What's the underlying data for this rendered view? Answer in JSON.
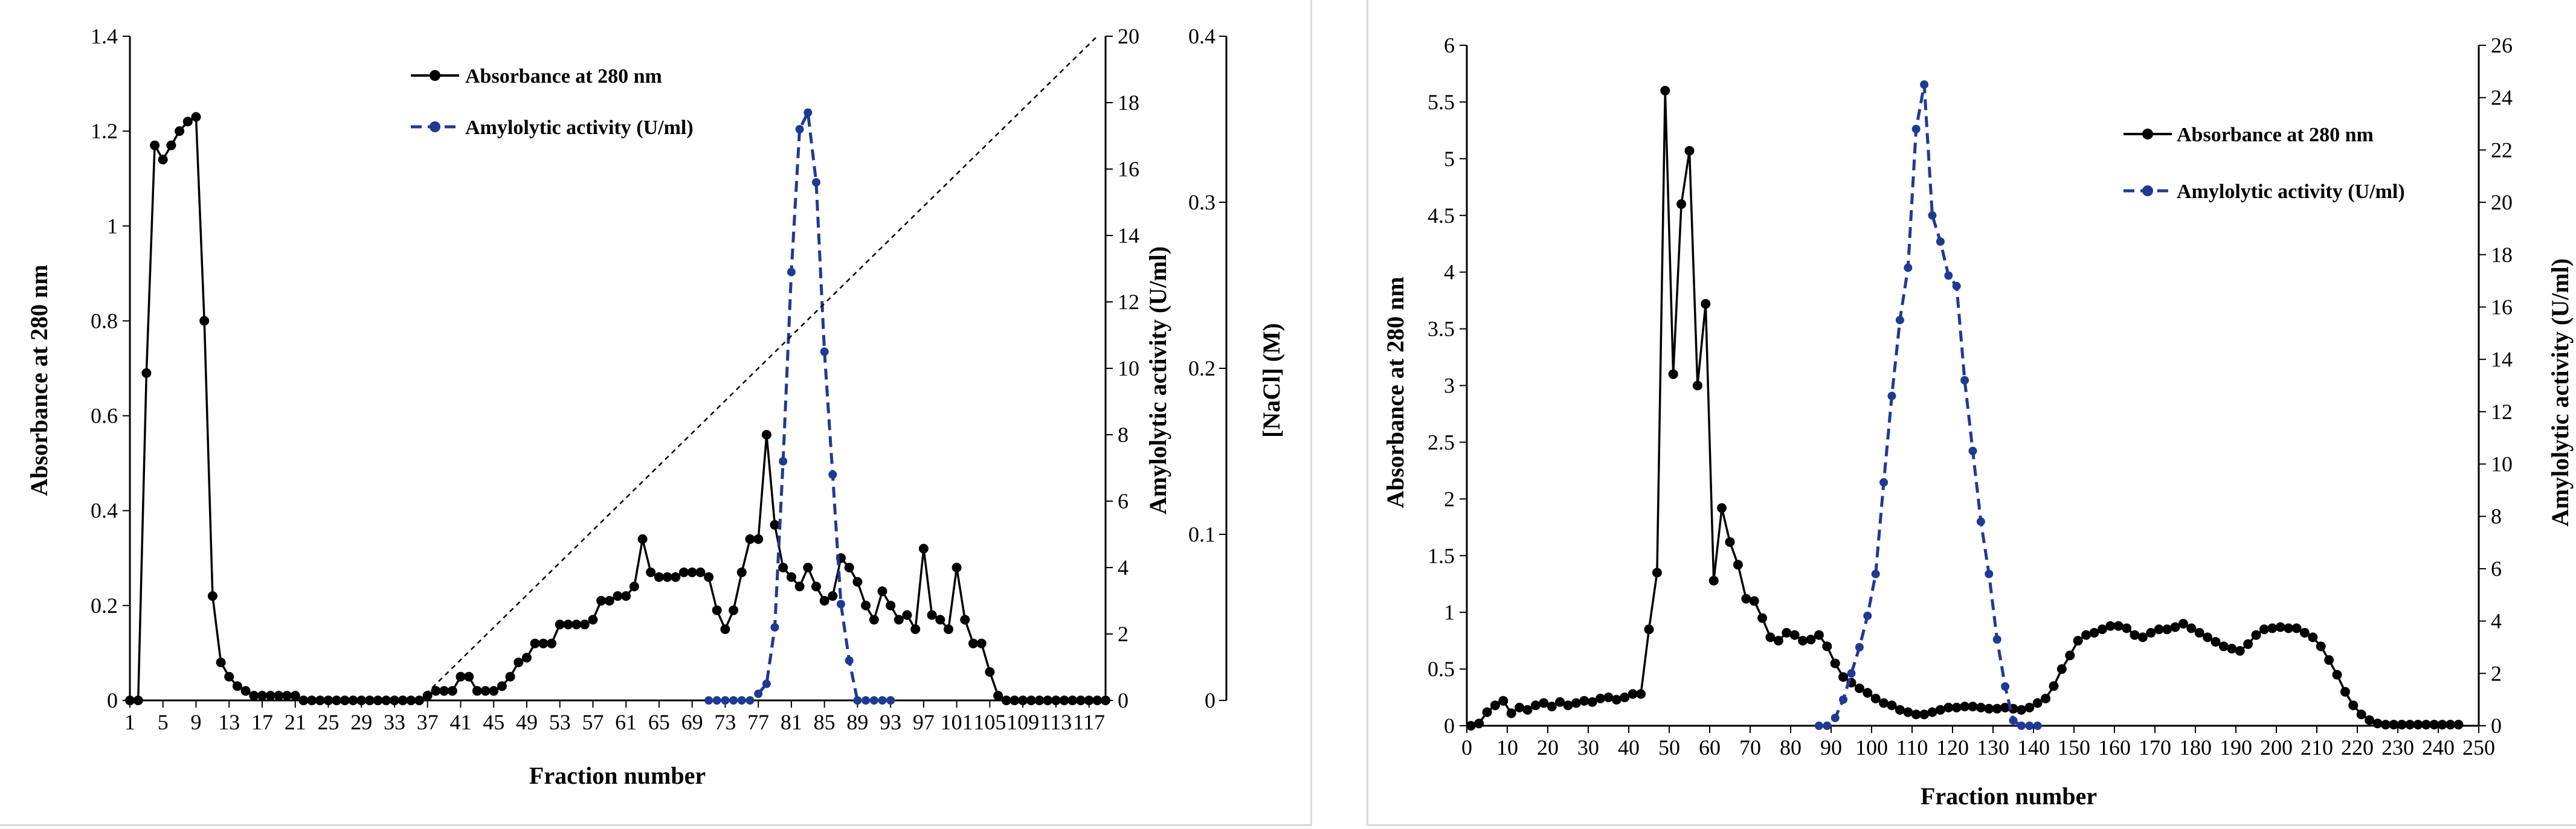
{
  "colors": {
    "absorbance": "#000000",
    "activity": "#1f3a93",
    "nacl": "#000000"
  },
  "chart_data": [
    {
      "type": "line",
      "xlabel": "Fraction number",
      "ylabel": "Absorbance at 280 nm",
      "y2label": "Amylolytic activity (U/ml)",
      "y3label": "[NaCl] (M)",
      "ylim": [
        0,
        1.4
      ],
      "y2lim": [
        0,
        20
      ],
      "y3lim": [
        0,
        0.4
      ],
      "xlim": [
        1,
        119
      ],
      "xtick_labels": [
        "1",
        "5",
        "9",
        "13",
        "17",
        "21",
        "25",
        "29",
        "33",
        "37",
        "41",
        "45",
        "49",
        "53",
        "57",
        "61",
        "65",
        "69",
        "73",
        "77",
        "81",
        "85",
        "89",
        "93",
        "97",
        "101",
        "105",
        "109",
        "113",
        "117"
      ],
      "ytick_labels": [
        "0",
        "0.2",
        "0.4",
        "0.6",
        "0.8",
        "1",
        "1.2",
        "1.4"
      ],
      "y2tick_labels": [
        "0",
        "2",
        "4",
        "6",
        "8",
        "10",
        "12",
        "14",
        "16",
        "18",
        "20"
      ],
      "y3tick_labels": [
        "0",
        "0.1",
        "0.2",
        "0.3",
        "0.4"
      ],
      "y3tick_values": [
        0,
        0.1,
        0.2,
        0.3,
        0.4
      ],
      "legend_position": "top-center",
      "series": [
        {
          "name": "Absorbance at 280 nm",
          "axis": "left",
          "style": "solid",
          "x": [
            1,
            2,
            3,
            4,
            5,
            6,
            7,
            8,
            9,
            10,
            11,
            12,
            13,
            14,
            15,
            16,
            17,
            18,
            19,
            20,
            21,
            22,
            23,
            24,
            25,
            26,
            27,
            28,
            29,
            30,
            31,
            32,
            33,
            34,
            35,
            36,
            37,
            38,
            39,
            40,
            41,
            42,
            43,
            44,
            45,
            46,
            47,
            48,
            49,
            50,
            51,
            52,
            53,
            54,
            55,
            56,
            57,
            58,
            59,
            60,
            61,
            62,
            63,
            64,
            65,
            66,
            67,
            68,
            69,
            70,
            71,
            72,
            73,
            74,
            75,
            76,
            77,
            78,
            79,
            80,
            81,
            82,
            83,
            84,
            85,
            86,
            87,
            88,
            89,
            90,
            91,
            92,
            93,
            94,
            95,
            96,
            97,
            98,
            99,
            100,
            101,
            102,
            103,
            104,
            105,
            106,
            107,
            108,
            109,
            110,
            111,
            112,
            113,
            114,
            115,
            116,
            117,
            118,
            119
          ],
          "y": [
            0,
            0,
            0.69,
            1.17,
            1.14,
            1.17,
            1.2,
            1.22,
            1.23,
            0.8,
            0.22,
            0.08,
            0.05,
            0.03,
            0.02,
            0.01,
            0.01,
            0.01,
            0.01,
            0.01,
            0.01,
            0,
            0,
            0,
            0,
            0,
            0,
            0,
            0,
            0,
            0,
            0,
            0,
            0,
            0,
            0,
            0.01,
            0.02,
            0.02,
            0.02,
            0.05,
            0.05,
            0.02,
            0.02,
            0.02,
            0.03,
            0.05,
            0.08,
            0.09,
            0.12,
            0.12,
            0.12,
            0.16,
            0.16,
            0.16,
            0.16,
            0.17,
            0.21,
            0.21,
            0.22,
            0.22,
            0.24,
            0.34,
            0.27,
            0.26,
            0.26,
            0.26,
            0.27,
            0.27,
            0.27,
            0.26,
            0.19,
            0.15,
            0.19,
            0.27,
            0.34,
            0.34,
            0.56,
            0.37,
            0.28,
            0.26,
            0.24,
            0.28,
            0.24,
            0.21,
            0.22,
            0.3,
            0.28,
            0.25,
            0.2,
            0.17,
            0.23,
            0.2,
            0.17,
            0.18,
            0.15,
            0.32,
            0.18,
            0.17,
            0.15,
            0.28,
            0.17,
            0.12,
            0.12,
            0.06,
            0.01,
            0,
            0,
            0,
            0,
            0,
            0,
            0,
            0,
            0,
            0,
            0,
            0,
            0
          ]
        },
        {
          "name": "Amylolytic activity (U/ml)",
          "axis": "right",
          "style": "dashed",
          "x": [
            71,
            72,
            73,
            74,
            75,
            76,
            77,
            78,
            79,
            80,
            81,
            82,
            83,
            84,
            85,
            86,
            87,
            88,
            89,
            90,
            91,
            92,
            93
          ],
          "y": [
            0,
            0,
            0,
            0,
            0,
            0,
            0.2,
            0.5,
            2.2,
            7.2,
            12.9,
            17.2,
            17.7,
            15.6,
            10.5,
            6.8,
            2.9,
            1.2,
            0,
            0,
            0,
            0,
            0
          ]
        },
        {
          "name": "NaCl gradient",
          "axis": "third",
          "style": "dotted",
          "x": [
            36,
            118
          ],
          "y": [
            0,
            0.4
          ]
        }
      ]
    },
    {
      "type": "line",
      "xlabel": "Fraction number",
      "ylabel": "Absorbance at 280 nm",
      "y2label": "Amylolytic activity (U/ml)",
      "ylim": [
        0,
        6
      ],
      "y2lim": [
        0,
        26
      ],
      "xlim": [
        0,
        250
      ],
      "xtick_labels": [
        "0",
        "10",
        "20",
        "30",
        "40",
        "50",
        "60",
        "70",
        "80",
        "90",
        "100",
        "110",
        "120",
        "130",
        "140",
        "150",
        "160",
        "170",
        "180",
        "190",
        "200",
        "210",
        "220",
        "230",
        "240",
        "250"
      ],
      "ytick_labels": [
        "0",
        "0.5",
        "1",
        "1.5",
        "2",
        "2.5",
        "3",
        "3.5",
        "4",
        "4.5",
        "5",
        "5.5",
        "6"
      ],
      "y2tick_labels": [
        "0",
        "2",
        "4",
        "6",
        "8",
        "10",
        "12",
        "14",
        "16",
        "18",
        "20",
        "22",
        "24",
        "26"
      ],
      "legend_position": "top-right",
      "series": [
        {
          "name": "Absorbance at 280 nm",
          "axis": "left",
          "style": "solid",
          "x": [
            1,
            3,
            5,
            7,
            9,
            11,
            13,
            15,
            17,
            19,
            21,
            23,
            25,
            27,
            29,
            31,
            33,
            35,
            37,
            39,
            41,
            43,
            45,
            47,
            49,
            51,
            53,
            55,
            57,
            59,
            61,
            63,
            65,
            67,
            69,
            71,
            73,
            75,
            77,
            79,
            81,
            83,
            85,
            87,
            89,
            91,
            93,
            95,
            97,
            99,
            101,
            103,
            105,
            107,
            109,
            111,
            113,
            115,
            117,
            119,
            121,
            123,
            125,
            127,
            129,
            131,
            133,
            135,
            137,
            139,
            141,
            143,
            145,
            147,
            149,
            151,
            153,
            155,
            157,
            159,
            161,
            163,
            165,
            167,
            169,
            171,
            173,
            175,
            177,
            179,
            181,
            183,
            185,
            187,
            189,
            191,
            193,
            195,
            197,
            199,
            201,
            203,
            205,
            207,
            209,
            211,
            213,
            215,
            217,
            219,
            221,
            223,
            225,
            227,
            229,
            231,
            233,
            235,
            237,
            239,
            241,
            243,
            245
          ],
          "y": [
            0,
            0.02,
            0.12,
            0.18,
            0.22,
            0.11,
            0.16,
            0.14,
            0.18,
            0.2,
            0.17,
            0.21,
            0.18,
            0.2,
            0.22,
            0.21,
            0.24,
            0.25,
            0.23,
            0.25,
            0.28,
            0.28,
            0.85,
            1.35,
            5.6,
            3.1,
            4.6,
            5.07,
            3.0,
            3.72,
            1.28,
            1.92,
            1.62,
            1.42,
            1.12,
            1.1,
            0.95,
            0.78,
            0.75,
            0.82,
            0.8,
            0.75,
            0.76,
            0.8,
            0.7,
            0.55,
            0.43,
            0.38,
            0.33,
            0.29,
            0.24,
            0.2,
            0.18,
            0.14,
            0.12,
            0.1,
            0.1,
            0.12,
            0.14,
            0.16,
            0.16,
            0.17,
            0.17,
            0.16,
            0.15,
            0.15,
            0.16,
            0.15,
            0.14,
            0.16,
            0.2,
            0.24,
            0.35,
            0.5,
            0.62,
            0.75,
            0.8,
            0.82,
            0.85,
            0.88,
            0.88,
            0.86,
            0.8,
            0.78,
            0.82,
            0.85,
            0.85,
            0.87,
            0.9,
            0.86,
            0.82,
            0.78,
            0.74,
            0.7,
            0.68,
            0.66,
            0.72,
            0.8,
            0.85,
            0.86,
            0.87,
            0.86,
            0.86,
            0.82,
            0.78,
            0.7,
            0.58,
            0.45,
            0.3,
            0.18,
            0.1,
            0.05,
            0.02,
            0.01,
            0.01,
            0.01,
            0.01,
            0.01,
            0.01,
            0.01,
            0.01,
            0.01,
            0.01
          ]
        },
        {
          "name": "Amylolytic activity (U/ml)",
          "axis": "right",
          "style": "dashed",
          "x": [
            87,
            89,
            91,
            93,
            95,
            97,
            99,
            101,
            103,
            105,
            107,
            109,
            111,
            113,
            115,
            117,
            119,
            121,
            123,
            125,
            127,
            129,
            131,
            133,
            135,
            137,
            139,
            141
          ],
          "y": [
            0,
            0,
            0.3,
            1,
            2,
            3,
            4.2,
            5.8,
            9.3,
            12.6,
            15.5,
            17.5,
            22.8,
            24.5,
            19.5,
            18.5,
            17.2,
            16.8,
            13.2,
            10.5,
            7.8,
            5.8,
            3.3,
            1.5,
            0.2,
            0,
            0,
            0
          ]
        }
      ]
    }
  ]
}
